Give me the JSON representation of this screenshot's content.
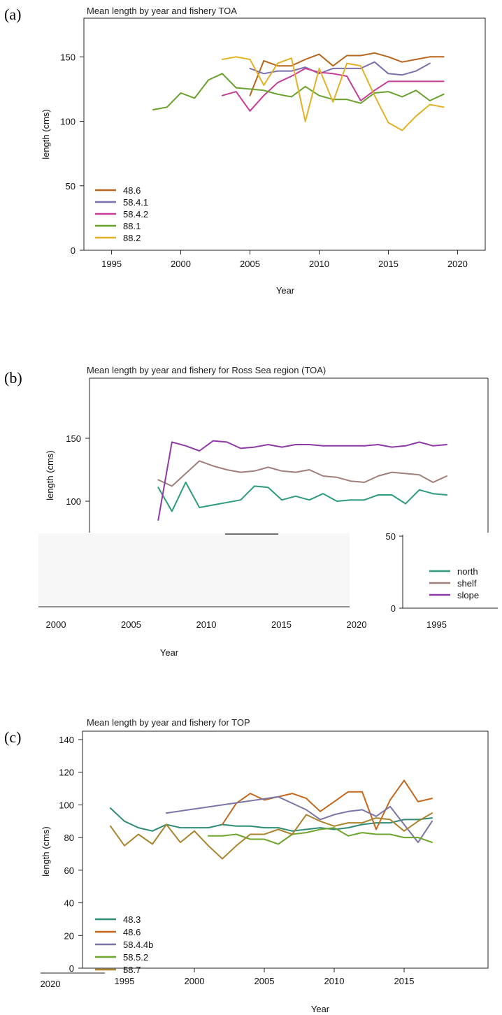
{
  "panels": [
    {
      "label": "(a)"
    },
    {
      "label": "(b)"
    },
    {
      "label": "(c)"
    }
  ],
  "chart_data": [
    {
      "type": "line",
      "title": "Mean length by year and fishery TOA",
      "xlabel": "Year",
      "ylabel": "length (cms)",
      "xlim": [
        1993,
        2022
      ],
      "ylim": [
        0,
        180
      ],
      "xticks": [
        1995,
        2000,
        2005,
        2010,
        2015,
        2020
      ],
      "yticks": [
        0,
        50,
        100,
        150
      ],
      "legend_position": "bottom-left",
      "series": [
        {
          "name": "48.6",
          "color": "#b5651d",
          "x": [
            2005,
            2006,
            2007,
            2008,
            2009,
            2010,
            2011,
            2012,
            2013,
            2014,
            2015,
            2016,
            2017,
            2018,
            2019
          ],
          "y": [
            120,
            147,
            143,
            143,
            148,
            152,
            143,
            151,
            151,
            153,
            150,
            146,
            148,
            150,
            150
          ]
        },
        {
          "name": "58.4.1",
          "color": "#7b6fae",
          "x": [
            2005,
            2006,
            2007,
            2008,
            2009,
            2010,
            2011,
            2012,
            2013,
            2014,
            2015,
            2016,
            2017,
            2018
          ],
          "y": [
            141,
            137,
            139,
            139,
            142,
            137,
            141,
            141,
            141,
            146,
            137,
            136,
            139,
            145
          ]
        },
        {
          "name": "58.4.2",
          "color": "#c73c97",
          "x": [
            2003,
            2004,
            2005,
            2006,
            2007,
            2008,
            2009,
            2010,
            2011,
            2012,
            2013,
            2014,
            2015,
            2016,
            2017,
            2018,
            2019
          ],
          "y": [
            120,
            123,
            108,
            120,
            130,
            135,
            141,
            138,
            137,
            135,
            116,
            124,
            131,
            131,
            131,
            131,
            131
          ]
        },
        {
          "name": "88.1",
          "color": "#68a22d",
          "x": [
            1998,
            1999,
            2000,
            2001,
            2002,
            2003,
            2004,
            2005,
            2006,
            2007,
            2008,
            2009,
            2010,
            2011,
            2012,
            2013,
            2014,
            2015,
            2016,
            2017,
            2018,
            2019
          ],
          "y": [
            109,
            111,
            122,
            118,
            132,
            137,
            126,
            125,
            124,
            121,
            119,
            127,
            120,
            117,
            117,
            114,
            122,
            123,
            119,
            124,
            116,
            121
          ]
        },
        {
          "name": "88.2",
          "color": "#e2b124",
          "x": [
            2003,
            2004,
            2005,
            2006,
            2007,
            2008,
            2009,
            2010,
            2011,
            2012,
            2013,
            2014,
            2015,
            2016,
            2017,
            2018,
            2019
          ],
          "y": [
            148,
            150,
            148,
            128,
            145,
            149,
            100,
            141,
            115,
            145,
            143,
            120,
            99,
            93,
            104,
            113,
            111
          ]
        }
      ]
    },
    {
      "type": "line",
      "title": "Mean length by year and fishery for Ross Sea region (TOA)",
      "xlabel": "Year",
      "ylabel": "length (cms)",
      "xlim": [
        1993,
        2022
      ],
      "ylim": [
        0,
        160
      ],
      "xticks_main": [
        2000,
        2005,
        2010,
        2015,
        2020
      ],
      "xticks_fragment": [
        1995
      ],
      "yticks_main": [
        100,
        150
      ],
      "yticks_fragment": [
        0,
        50
      ],
      "legend_position": "bottom-right",
      "series": [
        {
          "name": "north",
          "color": "#2e9b7e",
          "x": [
            1998,
            1999,
            2000,
            2001,
            2002,
            2003,
            2004,
            2005,
            2006,
            2007,
            2008,
            2009,
            2010,
            2011,
            2012,
            2013,
            2014,
            2015,
            2016,
            2017,
            2018,
            2019
          ],
          "y": [
            111,
            92,
            115,
            95,
            97,
            99,
            101,
            112,
            111,
            101,
            104,
            101,
            106,
            100,
            101,
            101,
            105,
            105,
            98,
            109,
            106,
            105
          ]
        },
        {
          "name": "shelf",
          "color": "#a07e79",
          "x": [
            1998,
            1999,
            2000,
            2001,
            2002,
            2003,
            2004,
            2005,
            2006,
            2007,
            2008,
            2009,
            2010,
            2011,
            2012,
            2013,
            2014,
            2015,
            2016,
            2017,
            2018,
            2019
          ],
          "y": [
            117,
            112,
            122,
            132,
            128,
            125,
            123,
            124,
            127,
            124,
            123,
            125,
            120,
            119,
            116,
            115,
            120,
            123,
            122,
            121,
            115,
            120
          ]
        },
        {
          "name": "slope",
          "color": "#8e3aa6",
          "x": [
            1998,
            1999,
            2000,
            2001,
            2002,
            2003,
            2004,
            2005,
            2006,
            2007,
            2008,
            2009,
            2010,
            2011,
            2012,
            2013,
            2014,
            2015,
            2016,
            2017,
            2018,
            2019
          ],
          "y": [
            85,
            147,
            144,
            140,
            148,
            147,
            142,
            143,
            145,
            143,
            145,
            145,
            144,
            144,
            144,
            144,
            145,
            143,
            144,
            147,
            144,
            145
          ]
        }
      ]
    },
    {
      "type": "line",
      "title": "Mean length by year and fishery for TOP",
      "xlabel": "Year",
      "ylabel": "length (cms)",
      "xlim": [
        1992,
        2021
      ],
      "ylim": [
        0,
        140
      ],
      "xticks": [
        1995,
        2000,
        2005,
        2010,
        2015
      ],
      "xtick_extra": "2020",
      "yticks": [
        0,
        20,
        40,
        60,
        80,
        100,
        120,
        140
      ],
      "legend_position": "bottom-left",
      "series": [
        {
          "name": "48.3",
          "color": "#2e8b74",
          "x": [
            1994,
            1995,
            1996,
            1997,
            1998,
            1999,
            2000,
            2001,
            2002,
            2003,
            2004,
            2005,
            2006,
            2007,
            2008,
            2009,
            2010,
            2011,
            2012,
            2013,
            2014,
            2015,
            2016,
            2017
          ],
          "y": [
            98,
            90,
            86,
            84,
            88,
            86,
            86,
            86,
            88,
            87,
            87,
            86,
            86,
            84,
            85,
            86,
            85,
            86,
            88,
            89,
            89,
            91,
            91,
            92
          ]
        },
        {
          "name": "48.6",
          "color": "#c4661b",
          "x": [
            2002,
            2003,
            2004,
            2005,
            2006,
            2007,
            2008,
            2009,
            2010,
            2011,
            2012,
            2013,
            2014,
            2015,
            2016,
            2017
          ],
          "y": [
            88,
            101,
            107,
            103,
            105,
            107,
            104,
            96,
            102,
            108,
            108,
            85,
            103,
            115,
            102,
            104
          ]
        },
        {
          "name": "58.4.4b",
          "color": "#7b74a6",
          "x": [
            1998,
            2006,
            2007,
            2008,
            2009,
            2010,
            2011,
            2012,
            2013,
            2014,
            2015,
            2016,
            2017
          ],
          "y": [
            95,
            105,
            101,
            97,
            91,
            94,
            96,
            97,
            93,
            99,
            88,
            77,
            90
          ]
        },
        {
          "name": "58.5.2",
          "color": "#6ea52d",
          "x": [
            2001,
            2002,
            2003,
            2004,
            2005,
            2006,
            2007,
            2008,
            2009,
            2010,
            2011,
            2012,
            2013,
            2014,
            2015,
            2016,
            2017
          ],
          "y": [
            81,
            81,
            82,
            79,
            79,
            76,
            82,
            83,
            85,
            86,
            81,
            83,
            82,
            82,
            80,
            80,
            77
          ]
        },
        {
          "name": "58.7",
          "color": "#a9842d",
          "x": [
            1994,
            1995,
            1996,
            1997,
            1998,
            1999,
            2000,
            2001,
            2002,
            2003,
            2004,
            2005,
            2006,
            2007,
            2008,
            2009,
            2010,
            2011,
            2012,
            2013,
            2014,
            2015,
            2016,
            2017
          ],
          "y": [
            87,
            75,
            82,
            76,
            88,
            77,
            84,
            75,
            67,
            75,
            82,
            82,
            85,
            82,
            94,
            90,
            87,
            89,
            89,
            92,
            91,
            84,
            90,
            95
          ]
        }
      ]
    }
  ]
}
